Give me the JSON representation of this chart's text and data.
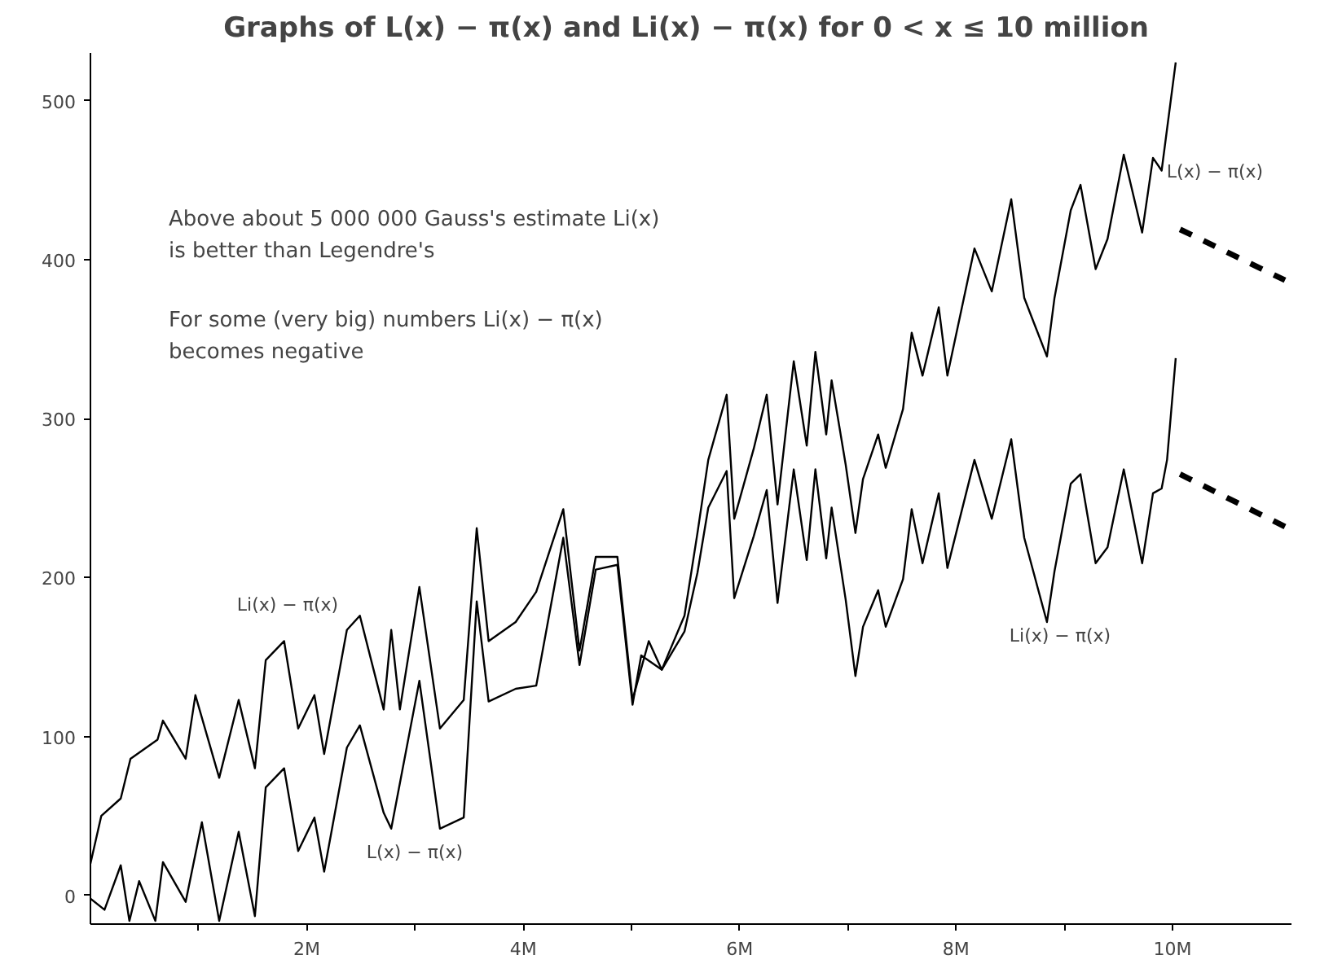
{
  "chart_data": {
    "type": "line",
    "title": "Graphs of L(x) − π(x) and Li(x) − π(x) for  0 < x ≤ 10 million",
    "xlim": [
      0,
      11100000
    ],
    "ylim": [
      -18,
      530
    ],
    "xticks": [
      {
        "value": 1000000,
        "label": null
      },
      {
        "value": 2000000,
        "label": "2M"
      },
      {
        "value": 3000000,
        "label": null
      },
      {
        "value": 4000000,
        "label": "4M"
      },
      {
        "value": 5000000,
        "label": null
      },
      {
        "value": 6000000,
        "label": "6M"
      },
      {
        "value": 7000000,
        "label": null
      },
      {
        "value": 8000000,
        "label": "8M"
      },
      {
        "value": 9000000,
        "label": null
      },
      {
        "value": 10000000,
        "label": "10M"
      }
    ],
    "yticks": [
      0,
      100,
      200,
      300,
      400,
      500
    ],
    "grid": false,
    "marker": "none",
    "series": [
      {
        "color": "#000000",
        "line_style": "solid",
        "x": [
          0,
          100000,
          280000,
          370000,
          620000,
          670000,
          880000,
          970000,
          1190000,
          1370000,
          1520000,
          1620000,
          1790000,
          1920000,
          2070000,
          2160000,
          2370000,
          2490000,
          2710000,
          2780000,
          2860000,
          3040000,
          3230000,
          3450000,
          3570000,
          3680000,
          3930000,
          4120000,
          4370000,
          4520000,
          4670000,
          4870000,
          5010000,
          5160000,
          5280000,
          5490000,
          5610000,
          5710000,
          5880000,
          5950000,
          6130000,
          6250000,
          6350000,
          6500000,
          6620000,
          6700000,
          6800000,
          6850000,
          6980000,
          7070000,
          7140000,
          7280000,
          7350000,
          7510000,
          7590000,
          7690000,
          7840000,
          7920000,
          8170000,
          8330000,
          8510000,
          8630000,
          8840000,
          8910000,
          9060000,
          9150000,
          9290000,
          9400000,
          9550000,
          9720000,
          9820000,
          9900000,
          9950000,
          10030000
        ],
        "values": [
          20,
          50,
          61,
          86,
          98,
          110,
          86,
          126,
          74,
          123,
          80,
          148,
          160,
          105,
          126,
          89,
          167,
          176,
          117,
          167,
          117,
          194,
          105,
          123,
          231,
          160,
          172,
          191,
          243,
          154,
          213,
          213,
          123,
          160,
          142,
          166,
          203,
          244,
          267,
          187,
          226,
          255,
          184,
          268,
          211,
          268,
          212,
          244,
          186,
          138,
          169,
          192,
          169,
          199,
          243,
          209,
          253,
          206,
          274,
          237,
          287,
          225,
          172,
          204,
          259,
          265,
          209,
          219,
          268,
          209,
          253,
          256,
          274,
          338
        ]
      },
      {
        "color": "#000000",
        "line_style": "solid",
        "x": [
          0,
          130000,
          280000,
          360000,
          450000,
          600000,
          670000,
          880000,
          1030000,
          1190000,
          1370000,
          1520000,
          1620000,
          1790000,
          1920000,
          2070000,
          2160000,
          2370000,
          2490000,
          2710000,
          2780000,
          3040000,
          3230000,
          3450000,
          3570000,
          3680000,
          3930000,
          4120000,
          4370000,
          4520000,
          4670000,
          4870000,
          5010000,
          5090000,
          5280000,
          5490000,
          5610000,
          5710000,
          5880000,
          5950000,
          6130000,
          6250000,
          6350000,
          6500000,
          6620000,
          6700000,
          6800000,
          6850000,
          6980000,
          7070000,
          7140000,
          7280000,
          7350000,
          7510000,
          7590000,
          7690000,
          7840000,
          7920000,
          8170000,
          8330000,
          8510000,
          8630000,
          8840000,
          8910000,
          9060000,
          9150000,
          9290000,
          9400000,
          9550000,
          9720000,
          9820000,
          9900000,
          10030000
        ],
        "values": [
          -2,
          -9,
          19,
          -16,
          9,
          -16,
          21,
          -4,
          46,
          -16,
          40,
          -13,
          68,
          80,
          28,
          49,
          15,
          93,
          107,
          52,
          42,
          135,
          42,
          49,
          185,
          122,
          130,
          132,
          225,
          145,
          205,
          208,
          120,
          151,
          142,
          176,
          228,
          274,
          315,
          237,
          281,
          315,
          246,
          336,
          283,
          342,
          290,
          324,
          271,
          228,
          262,
          290,
          269,
          306,
          354,
          327,
          370,
          327,
          407,
          380,
          438,
          376,
          339,
          376,
          431,
          447,
          394,
          413,
          466,
          417,
          464,
          456,
          524
        ]
      },
      {
        "color": "#000000",
        "line_style": "dashed",
        "x": [
          10070000,
          11040000
        ],
        "values": [
          419,
          387
        ]
      },
      {
        "color": "#000000",
        "line_style": "dashed",
        "x": [
          10070000,
          11040000
        ],
        "values": [
          265,
          232
        ]
      }
    ],
    "annotations": [
      "Above about 5 000 000 Gauss's estimate Li(x)\nis better than Legendre's",
      "For some (very big) numbers Li(x) − π(x)\nbecomes negative",
      "Li(x) − π(x)",
      "L(x) − π(x)",
      "Li(x) − π(x)",
      "L(x) − π(x)"
    ]
  }
}
